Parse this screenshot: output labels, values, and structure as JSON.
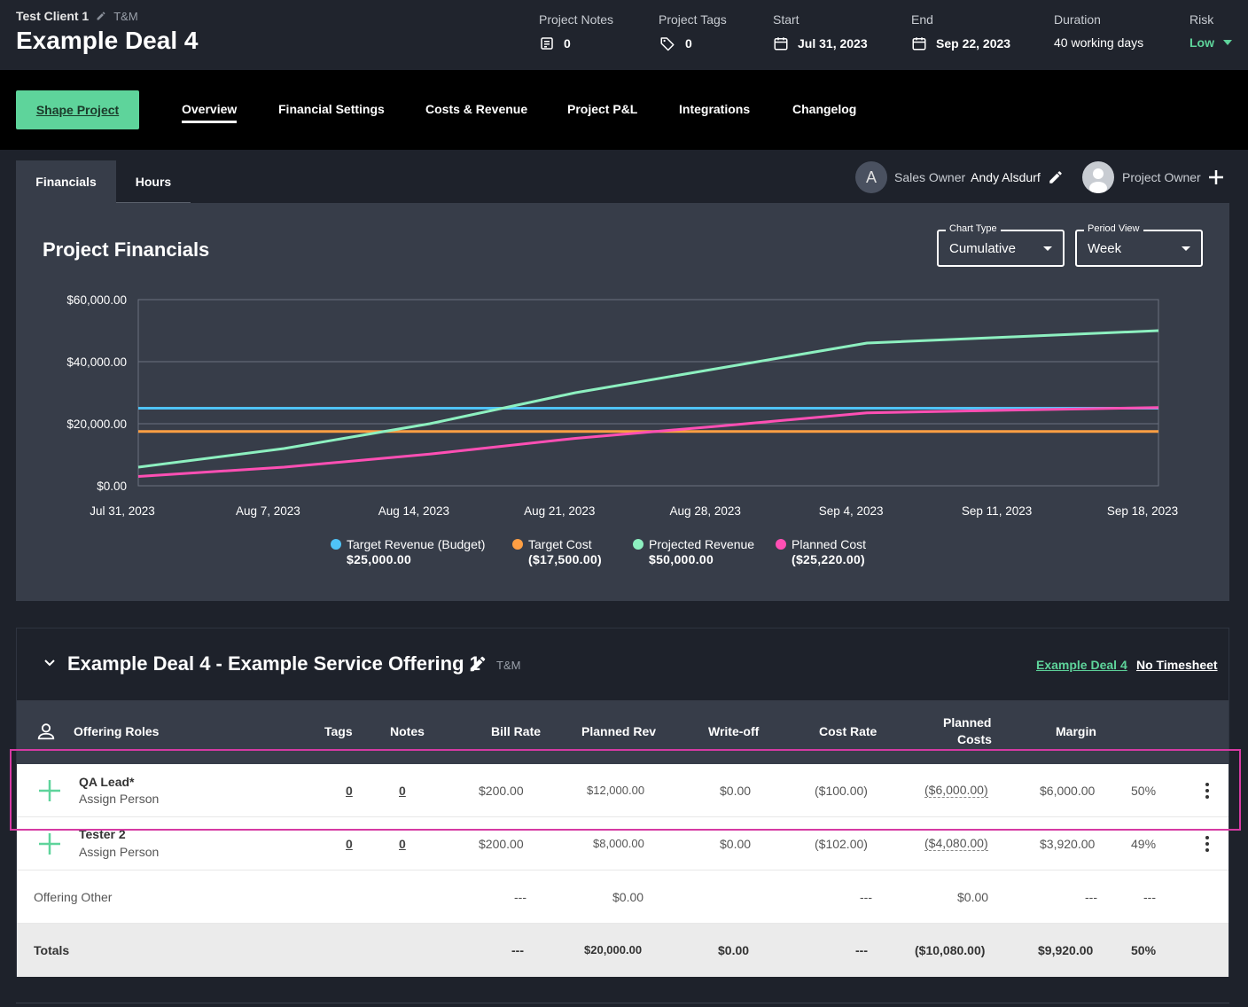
{
  "header": {
    "client": "Test Client 1",
    "client_type": "T&M",
    "deal_title": "Example Deal 4",
    "project_notes_label": "Project Notes",
    "project_notes_value": "0",
    "project_tags_label": "Project Tags",
    "project_tags_value": "0",
    "start_label": "Start",
    "start_value": "Jul 31, 2023",
    "end_label": "End",
    "end_value": "Sep 22, 2023",
    "duration_label": "Duration",
    "duration_value": "40 working days",
    "risk_label": "Risk",
    "risk_value": "Low"
  },
  "nav": {
    "shape_button": "Shape Project",
    "tabs": [
      "Overview",
      "Financial Settings",
      "Costs & Revenue",
      "Project P&L",
      "Integrations",
      "Changelog"
    ],
    "active_tab": "Overview"
  },
  "subtabs": {
    "financials": "Financials",
    "hours": "Hours"
  },
  "owners": {
    "sales_avatar_letter": "A",
    "sales_owner_label": "Sales Owner",
    "sales_owner_name": "Andy Alsdurf",
    "project_owner_label": "Project Owner"
  },
  "panel": {
    "title": "Project Financials",
    "chart_type_label": "Chart Type",
    "chart_type_value": "Cumulative",
    "period_view_label": "Period View",
    "period_view_value": "Week"
  },
  "chart_data": {
    "type": "line",
    "ylim": [
      0,
      60000
    ],
    "yticks": [
      "$0.00",
      "$20,000.00",
      "$40,000.00",
      "$60,000.00"
    ],
    "ytick_values": [
      0,
      20000,
      40000,
      60000
    ],
    "x": [
      "Jul 31, 2023",
      "Aug 7, 2023",
      "Aug 14, 2023",
      "Aug 21, 2023",
      "Aug 28, 2023",
      "Sep 4, 2023",
      "Sep 11, 2023",
      "Sep 18, 2023"
    ],
    "grid": true,
    "series": [
      {
        "name": "Target Revenue (Budget)",
        "color": "#4fc3f7",
        "values": [
          25000,
          25000,
          25000,
          25000,
          25000,
          25000,
          25000,
          25000
        ],
        "total": "$25,000.00"
      },
      {
        "name": "Target Cost",
        "color": "#ff9f43",
        "values": [
          17500,
          17500,
          17500,
          17500,
          17500,
          17500,
          17500,
          17500
        ],
        "total": "($17,500.00)"
      },
      {
        "name": "Projected Revenue",
        "color": "#8df0c0",
        "values": [
          6000,
          12000,
          20000,
          30000,
          38000,
          46000,
          48000,
          50000
        ],
        "total": "$50,000.00"
      },
      {
        "name": "Planned Cost",
        "color": "#ff4fb4",
        "values": [
          3000,
          6000,
          10200,
          15300,
          19300,
          23500,
          24400,
          25220
        ],
        "total": "($25,220.00)"
      }
    ]
  },
  "offering": {
    "title": "Example Deal 4 - Example Service Offering 1",
    "type": "T&M",
    "deal_link": "Example Deal 4",
    "timesheet_link": "No Timesheet",
    "columns": {
      "roles": "Offering Roles",
      "tags": "Tags",
      "notes": "Notes",
      "bill_rate": "Bill Rate",
      "planned_rev": "Planned Rev",
      "write_off": "Write-off",
      "cost_rate": "Cost Rate",
      "planned_costs_1": "Planned",
      "planned_costs_2": "Costs",
      "margin": "Margin"
    },
    "rows": [
      {
        "role": "QA Lead*",
        "assign": "Assign Person",
        "tags": "0",
        "notes": "0",
        "bill_rate": "$200.00",
        "planned_rev": "$12,000.00",
        "write_off": "$0.00",
        "cost_rate": "($100.00)",
        "planned_costs": "($6,000.00)",
        "margin": "$6,000.00",
        "margin_pct": "50%"
      },
      {
        "role": "Tester 2",
        "assign": "Assign Person",
        "tags": "0",
        "notes": "0",
        "bill_rate": "$200.00",
        "planned_rev": "$8,000.00",
        "write_off": "$0.00",
        "cost_rate": "($102.00)",
        "planned_costs": "($4,080.00)",
        "margin": "$3,920.00",
        "margin_pct": "49%"
      }
    ],
    "other": {
      "label": "Offering Other",
      "bill_rate": "---",
      "planned_rev": "$0.00",
      "cost_rate": "---",
      "planned_costs": "$0.00",
      "margin": "---",
      "margin_pct": "---"
    },
    "totals": {
      "label": "Totals",
      "bill_rate": "---",
      "planned_rev": "$20,000.00",
      "write_off": "$0.00",
      "cost_rate": "---",
      "planned_costs": "($10,080.00)",
      "margin": "$9,920.00",
      "margin_pct": "50%"
    }
  }
}
